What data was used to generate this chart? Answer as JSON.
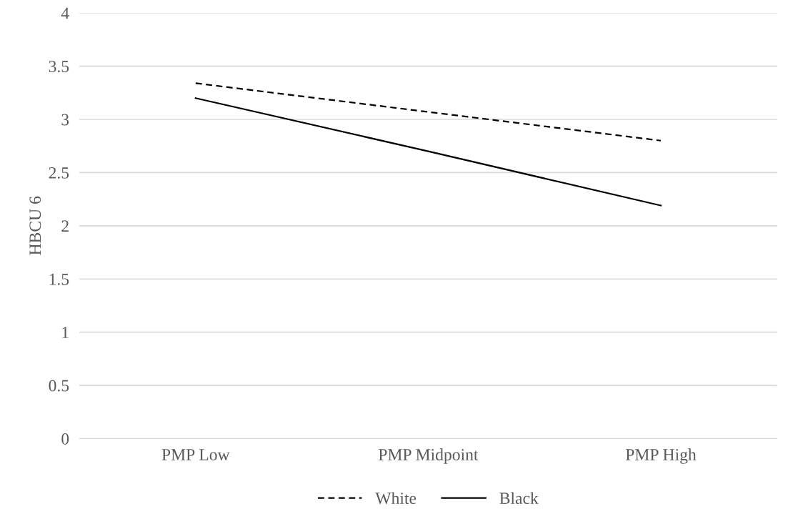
{
  "chart_data": {
    "type": "line",
    "ylabel": "HBCU 6",
    "categories": [
      "PMP Low",
      "PMP Midpoint",
      "PMP High"
    ],
    "series": [
      {
        "name": "White",
        "color": "#000000",
        "line_style": "dashed",
        "values": [
          3.34,
          3.07,
          2.8
        ]
      },
      {
        "name": "Black",
        "color": "#000000",
        "line_style": "solid",
        "values": [
          3.2,
          2.7,
          2.19
        ]
      }
    ],
    "ylim": [
      0,
      4
    ],
    "yticks": [
      0,
      0.5,
      1,
      1.5,
      2,
      2.5,
      3,
      3.5,
      4
    ],
    "grid": "y",
    "legend": "bottom",
    "marker": "none"
  }
}
